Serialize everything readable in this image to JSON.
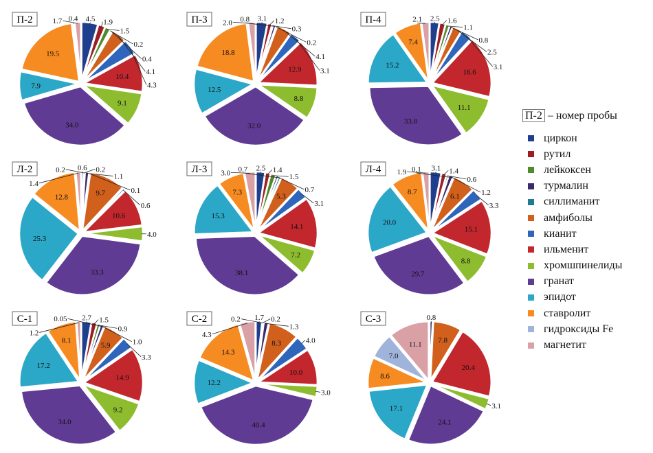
{
  "legend": {
    "sample_label": "П-2",
    "sample_caption": "– номер пробы"
  },
  "chart_data": {
    "type": "pie",
    "categories": [
      "циркон",
      "рутил",
      "лейкоксен",
      "турмалин",
      "силлиманит",
      "амфиболы",
      "кианит",
      "ильменит",
      "хромшпинелиды",
      "гранат",
      "эпидот",
      "ставролит",
      "гидроксиды Fe",
      "магнетит"
    ],
    "colors": [
      "#1f3f8c",
      "#9c1d24",
      "#4f8b2b",
      "#3b2a6b",
      "#1f7b8f",
      "#d1601d",
      "#2f66bb",
      "#c1272d",
      "#8dbc2f",
      "#603b93",
      "#2ba7c7",
      "#f68b21",
      "#a0b3da",
      "#d9a1a6"
    ],
    "charts": [
      {
        "label": "П-2",
        "values": [
          4.5,
          1.9,
          1.5,
          0.2,
          0.4,
          4.1,
          4.3,
          10.4,
          9.1,
          34.0,
          7.9,
          19.5,
          0.4,
          1.7
        ]
      },
      {
        "label": "П-3",
        "values": [
          3.1,
          1.2,
          0.3,
          0.8,
          0.2,
          4.1,
          3.1,
          12.9,
          8.8,
          32.0,
          12.5,
          18.8,
          null,
          2.0
        ]
      },
      {
        "label": "П-4",
        "values": [
          2.5,
          1.6,
          1.1,
          0.8,
          null,
          2.5,
          3.1,
          16.6,
          11.1,
          33.8,
          15.2,
          7.4,
          null,
          2.1
        ]
      },
      {
        "label": "Л-2",
        "values": [
          0.6,
          0.2,
          0.2,
          1.1,
          0.1,
          9.7,
          0.6,
          10.6,
          4.0,
          33.3,
          25.3,
          12.8,
          null,
          1.4
        ]
      },
      {
        "label": "Л-3",
        "values": [
          2.5,
          1.4,
          1.5,
          0.7,
          0.7,
          5.3,
          3.1,
          14.1,
          7.2,
          38.1,
          15.3,
          7.3,
          null,
          3.0
        ]
      },
      {
        "label": "Л-4",
        "values": [
          3.1,
          1.4,
          0.6,
          1.2,
          0.1,
          6.1,
          3.3,
          15.1,
          8.8,
          29.7,
          20.0,
          8.7,
          null,
          1.9
        ]
      },
      {
        "label": "С-1",
        "values": [
          2.7,
          1.5,
          0.9,
          1.0,
          0.05,
          5.9,
          3.3,
          14.9,
          9.2,
          34.0,
          17.2,
          8.1,
          null,
          1.2
        ]
      },
      {
        "label": "С-2",
        "values": [
          1.7,
          0.2,
          0.2,
          1.3,
          null,
          8.3,
          4.0,
          10.0,
          3.0,
          40.4,
          12.2,
          14.3,
          null,
          4.3
        ]
      },
      {
        "label": "С-3",
        "values": [
          null,
          null,
          null,
          0.8,
          null,
          7.8,
          null,
          20.4,
          3.1,
          24.1,
          17.1,
          8.6,
          7.0,
          11.1
        ]
      }
    ],
    "legend_position": "right"
  }
}
